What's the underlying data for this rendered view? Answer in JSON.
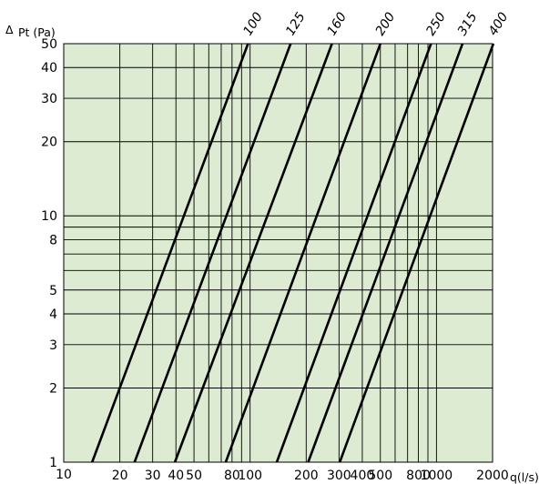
{
  "chart_data": {
    "type": "line",
    "title": "",
    "x_scale": "log",
    "y_scale": "log",
    "xlim": [
      10,
      2000
    ],
    "ylim": [
      1,
      50
    ],
    "xlabel": "q(l/s)",
    "ylabel_symbol": "Δ",
    "ylabel": "Pt (Pa)",
    "x_tick_labels": [
      {
        "value": 10,
        "label": "10"
      },
      {
        "value": 20,
        "label": "20"
      },
      {
        "value": 30,
        "label": "30"
      },
      {
        "value": 40,
        "label": "40"
      },
      {
        "value": 50,
        "label": "50"
      },
      {
        "value": 80,
        "label": "80"
      },
      {
        "value": 100,
        "label": "100"
      },
      {
        "value": 200,
        "label": "200"
      },
      {
        "value": 300,
        "label": "300"
      },
      {
        "value": 400,
        "label": "400"
      },
      {
        "value": 500,
        "label": "500"
      },
      {
        "value": 800,
        "label": "800"
      },
      {
        "value": 1000,
        "label": "1000"
      },
      {
        "value": 2000,
        "label": "2000"
      }
    ],
    "y_tick_labels": [
      {
        "value": 1,
        "label": "1"
      },
      {
        "value": 2,
        "label": "2"
      },
      {
        "value": 3,
        "label": "3"
      },
      {
        "value": 4,
        "label": "4"
      },
      {
        "value": 5,
        "label": "5"
      },
      {
        "value": 8,
        "label": "8"
      },
      {
        "value": 10,
        "label": "10"
      },
      {
        "value": 20,
        "label": "20"
      },
      {
        "value": 30,
        "label": "30"
      },
      {
        "value": 40,
        "label": "40"
      },
      {
        "value": 50,
        "label": "50"
      }
    ],
    "x_grid": [
      10,
      20,
      30,
      40,
      50,
      60,
      70,
      80,
      90,
      100,
      200,
      300,
      400,
      500,
      600,
      700,
      800,
      900,
      1000,
      2000
    ],
    "y_grid": [
      1,
      2,
      3,
      4,
      5,
      6,
      7,
      8,
      9,
      10,
      20,
      30,
      40,
      50
    ],
    "grid": true,
    "series": [
      {
        "name": "100",
        "x": [
          14.2,
          97.5
        ],
        "y": [
          1,
          50
        ]
      },
      {
        "name": "125",
        "x": [
          24.0,
          165
        ],
        "y": [
          1,
          50
        ]
      },
      {
        "name": "160",
        "x": [
          39.5,
          275
        ],
        "y": [
          1,
          50
        ]
      },
      {
        "name": "200",
        "x": [
          74.0,
          500
        ],
        "y": [
          1,
          50
        ]
      },
      {
        "name": "250",
        "x": [
          139,
          935
        ],
        "y": [
          1,
          50
        ]
      },
      {
        "name": "315",
        "x": [
          205,
          1380
        ],
        "y": [
          1,
          50
        ]
      },
      {
        "name": "400",
        "x": [
          303,
          2020
        ],
        "y": [
          1,
          50
        ]
      }
    ],
    "colors": {
      "background": "#dcebd2",
      "grid": "#000000",
      "line": "#000000"
    }
  }
}
